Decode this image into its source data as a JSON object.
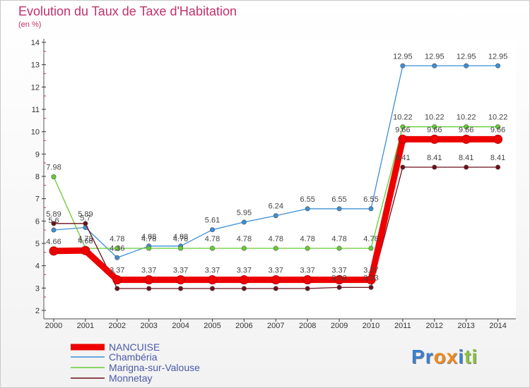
{
  "chart_data": {
    "type": "line",
    "title": "Evolution du Taux de Taxe d'Habitation",
    "ylabel": "(en %)",
    "xlabel": "",
    "ylim": [
      2,
      14
    ],
    "yticks": [
      "2",
      "3",
      "4",
      "5",
      "6",
      "7",
      "8",
      "9",
      "10",
      "11",
      "12",
      "13",
      "14"
    ],
    "categories": [
      "2000",
      "2001",
      "2002",
      "2003",
      "2004",
      "2005",
      "2006",
      "2007",
      "2008",
      "2009",
      "2010",
      "2011",
      "2012",
      "2013",
      "2014"
    ],
    "series": [
      {
        "name": "NANCUISE",
        "color": "#ee0000",
        "values": [
          4.66,
          4.68,
          3.37,
          3.37,
          3.37,
          3.37,
          3.37,
          3.37,
          3.37,
          3.37,
          3.37,
          9.66,
          9.66,
          9.66,
          9.66
        ],
        "labels": [
          "4.66",
          "4.68",
          "3.37",
          "3.37",
          "3.37",
          "3.37",
          "3.37",
          "3.37",
          "3.37",
          "3.37",
          "3.37",
          "9.66",
          "9.66",
          "9.66",
          "9.66"
        ]
      },
      {
        "name": "Chambéria",
        "color": "#3d8fd6",
        "values": [
          5.6,
          5.71,
          4.36,
          4.88,
          4.88,
          5.61,
          5.95,
          6.24,
          6.55,
          6.55,
          6.55,
          12.95,
          12.95,
          12.95,
          12.95
        ],
        "labels": [
          "5.6",
          "5.7",
          "4.36",
          "4.88",
          "4.88",
          "5.61",
          "5.95",
          "6.24",
          "6.55",
          "6.55",
          "6.55",
          "12.95",
          "12.95",
          "12.95",
          "12.95"
        ]
      },
      {
        "name": "Marigna-sur-Valouse",
        "color": "#66cc33",
        "values": [
          7.98,
          4.78,
          4.78,
          4.78,
          4.78,
          4.78,
          4.78,
          4.78,
          4.78,
          4.78,
          4.78,
          10.22,
          10.22,
          10.22,
          10.22
        ],
        "labels": [
          "7.98",
          "4.78",
          "4.78",
          "4.78",
          "4.78",
          "4.78",
          "4.78",
          "4.78",
          "4.78",
          "4.78",
          "4.78",
          "10.22",
          "10.22",
          "10.22",
          "10.22"
        ]
      },
      {
        "name": "Monnetay",
        "color": "#6b0f1a",
        "values": [
          5.89,
          5.89,
          2.98,
          2.98,
          2.98,
          2.98,
          2.98,
          2.98,
          2.98,
          3.03,
          3.03,
          8.41,
          8.41,
          8.41,
          8.41
        ],
        "labels": [
          "5.89",
          "5.89",
          "",
          "",
          "",
          "",
          "",
          "",
          "",
          "3.03",
          "3.03",
          "8.41",
          "8.41",
          "8.41",
          "8.41"
        ]
      }
    ]
  },
  "logo": {
    "text": "Proxiti",
    "letters": [
      "P",
      "r",
      "o",
      "x",
      "i",
      "t",
      "i"
    ],
    "colors": [
      "#3a7fd0",
      "#3a7fd0",
      "#f08a1c",
      "#f08a1c",
      "#3a7fd0",
      "#88c13a",
      "#88c13a"
    ]
  }
}
